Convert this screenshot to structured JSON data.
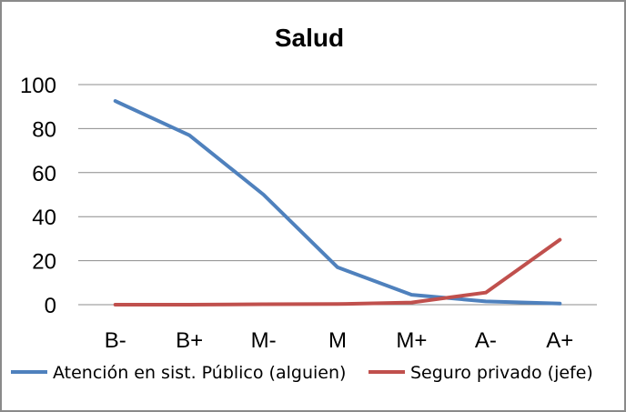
{
  "chart_data": {
    "type": "line",
    "title": "Salud",
    "xlabel": "",
    "ylabel": "",
    "categories": [
      "B-",
      "B+",
      "M-",
      "M",
      "M+",
      "A-",
      "A+"
    ],
    "ylim": [
      0,
      100
    ],
    "yticks": [
      "0",
      "20",
      "40",
      "60",
      "80",
      "100"
    ],
    "grid": true,
    "legend_position": "bottom",
    "series": [
      {
        "name": "Atención en sist. Público (alguien)",
        "color": "#4f81bd",
        "values": [
          92.5,
          77,
          50,
          17,
          4.5,
          1.5,
          0.5
        ]
      },
      {
        "name": "Seguro privado (jefe)",
        "color": "#c0504d",
        "values": [
          0,
          0,
          0.2,
          0.3,
          1,
          5.5,
          29.5
        ]
      }
    ]
  }
}
